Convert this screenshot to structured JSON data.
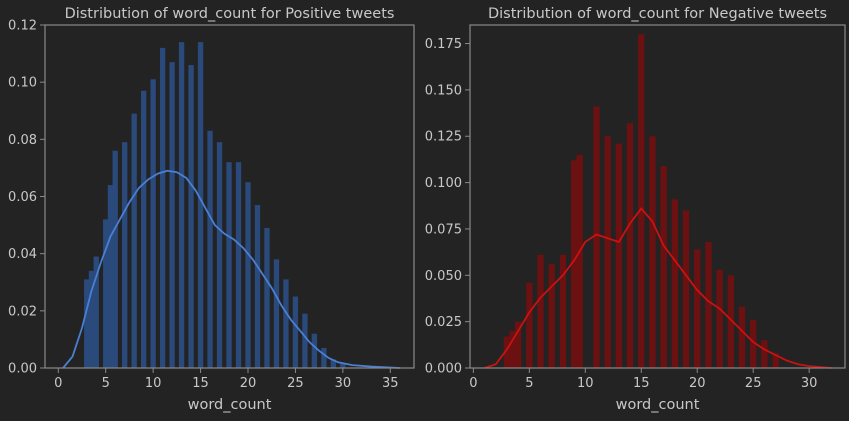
{
  "figure": {
    "background": "#232323",
    "axes_color": "#8a8a8a",
    "text_color": "#c8c8c8"
  },
  "chart_data": [
    {
      "type": "histogram",
      "title": "Distribution of word_count for Positive tweets",
      "xlabel": "word_count",
      "ylabel": "",
      "xlim": [
        -1.4,
        37.5
      ],
      "ylim": [
        0,
        0.12
      ],
      "xticks": [
        "0",
        "5",
        "10",
        "15",
        "20",
        "25",
        "30",
        "35"
      ],
      "yticks": [
        "0.00",
        "0.02",
        "0.04",
        "0.06",
        "0.08",
        "0.10",
        "0.12"
      ],
      "bar_color": "#2b4a7c",
      "kde_color": "#4a7fd4",
      "bars": [
        {
          "x": 3,
          "y": 0.031
        },
        {
          "x": 3.5,
          "y": 0.034
        },
        {
          "x": 4,
          "y": 0.039
        },
        {
          "x": 5,
          "y": 0.052
        },
        {
          "x": 5.5,
          "y": 0.064
        },
        {
          "x": 6,
          "y": 0.076
        },
        {
          "x": 7,
          "y": 0.079
        },
        {
          "x": 8,
          "y": 0.089
        },
        {
          "x": 9,
          "y": 0.097
        },
        {
          "x": 10,
          "y": 0.101
        },
        {
          "x": 11,
          "y": 0.112
        },
        {
          "x": 12,
          "y": 0.107
        },
        {
          "x": 13,
          "y": 0.114
        },
        {
          "x": 14,
          "y": 0.106
        },
        {
          "x": 15,
          "y": 0.114
        },
        {
          "x": 16,
          "y": 0.083
        },
        {
          "x": 17,
          "y": 0.079
        },
        {
          "x": 18,
          "y": 0.072
        },
        {
          "x": 19,
          "y": 0.072
        },
        {
          "x": 20,
          "y": 0.065
        },
        {
          "x": 21,
          "y": 0.057
        },
        {
          "x": 22,
          "y": 0.049
        },
        {
          "x": 23,
          "y": 0.038
        },
        {
          "x": 24,
          "y": 0.031
        },
        {
          "x": 25,
          "y": 0.025
        },
        {
          "x": 26,
          "y": 0.019
        },
        {
          "x": 27,
          "y": 0.012
        },
        {
          "x": 28,
          "y": 0.007
        },
        {
          "x": 29,
          "y": 0.003
        },
        {
          "x": 30,
          "y": 0.0015
        }
      ],
      "kde": [
        [
          0.5,
          0.0
        ],
        [
          1.5,
          0.004
        ],
        [
          2.5,
          0.014
        ],
        [
          3.5,
          0.027
        ],
        [
          4.5,
          0.037
        ],
        [
          5.5,
          0.046
        ],
        [
          6.5,
          0.052
        ],
        [
          7.5,
          0.058
        ],
        [
          8.5,
          0.063
        ],
        [
          9.5,
          0.066
        ],
        [
          10.5,
          0.068
        ],
        [
          11.5,
          0.069
        ],
        [
          12.5,
          0.0685
        ],
        [
          13.5,
          0.0665
        ],
        [
          14.5,
          0.062
        ],
        [
          15.5,
          0.056
        ],
        [
          16.5,
          0.05
        ],
        [
          17.5,
          0.047
        ],
        [
          18.5,
          0.045
        ],
        [
          19.5,
          0.042
        ],
        [
          20.5,
          0.038
        ],
        [
          21.5,
          0.033
        ],
        [
          22.5,
          0.028
        ],
        [
          23.5,
          0.022
        ],
        [
          24.5,
          0.017
        ],
        [
          25.5,
          0.013
        ],
        [
          26.5,
          0.009
        ],
        [
          27.5,
          0.006
        ],
        [
          28.5,
          0.0035
        ],
        [
          29.5,
          0.002
        ],
        [
          31,
          0.001
        ],
        [
          33,
          0.0005
        ],
        [
          36,
          0.0
        ]
      ]
    },
    {
      "type": "histogram",
      "title": "Distribution of word_count for Negative tweets",
      "xlabel": "word_count",
      "ylabel": "",
      "xlim": [
        -0.3,
        33.2
      ],
      "ylim": [
        0,
        0.185
      ],
      "xticks": [
        "0",
        "5",
        "10",
        "15",
        "20",
        "25",
        "30"
      ],
      "yticks": [
        "0.000",
        "0.025",
        "0.050",
        "0.075",
        "0.100",
        "0.125",
        "0.150",
        "0.175"
      ],
      "bar_color": "#6b1111",
      "kde_color": "#cc1111",
      "bars": [
        {
          "x": 3,
          "y": 0.017
        },
        {
          "x": 3.5,
          "y": 0.02
        },
        {
          "x": 4,
          "y": 0.025
        },
        {
          "x": 5,
          "y": 0.046
        },
        {
          "x": 6,
          "y": 0.061
        },
        {
          "x": 7,
          "y": 0.056
        },
        {
          "x": 8,
          "y": 0.061
        },
        {
          "x": 9,
          "y": 0.112
        },
        {
          "x": 9.5,
          "y": 0.115
        },
        {
          "x": 11,
          "y": 0.141
        },
        {
          "x": 12,
          "y": 0.125
        },
        {
          "x": 13,
          "y": 0.121
        },
        {
          "x": 14,
          "y": 0.132
        },
        {
          "x": 15,
          "y": 0.18
        },
        {
          "x": 16,
          "y": 0.125
        },
        {
          "x": 17,
          "y": 0.109
        },
        {
          "x": 18,
          "y": 0.091
        },
        {
          "x": 19,
          "y": 0.085
        },
        {
          "x": 20,
          "y": 0.064
        },
        {
          "x": 21,
          "y": 0.068
        },
        {
          "x": 22,
          "y": 0.053
        },
        {
          "x": 23,
          "y": 0.05
        },
        {
          "x": 24,
          "y": 0.033
        },
        {
          "x": 25,
          "y": 0.026
        },
        {
          "x": 26,
          "y": 0.015
        },
        {
          "x": 27,
          "y": 0.008
        }
      ],
      "kde": [
        [
          1,
          0.0
        ],
        [
          2,
          0.002
        ],
        [
          3,
          0.01
        ],
        [
          4,
          0.02
        ],
        [
          5,
          0.03
        ],
        [
          6,
          0.038
        ],
        [
          7,
          0.044
        ],
        [
          8,
          0.05
        ],
        [
          9,
          0.058
        ],
        [
          10,
          0.068
        ],
        [
          11,
          0.072
        ],
        [
          12,
          0.07
        ],
        [
          13,
          0.068
        ],
        [
          14,
          0.078
        ],
        [
          15,
          0.086
        ],
        [
          16,
          0.079
        ],
        [
          17,
          0.066
        ],
        [
          18,
          0.058
        ],
        [
          19,
          0.05
        ],
        [
          20,
          0.042
        ],
        [
          21,
          0.036
        ],
        [
          22,
          0.032
        ],
        [
          23,
          0.026
        ],
        [
          24,
          0.02
        ],
        [
          25,
          0.014
        ],
        [
          26,
          0.01
        ],
        [
          27,
          0.007
        ],
        [
          28,
          0.004
        ],
        [
          29,
          0.002
        ],
        [
          30,
          0.001
        ],
        [
          32,
          0.0
        ]
      ]
    }
  ]
}
